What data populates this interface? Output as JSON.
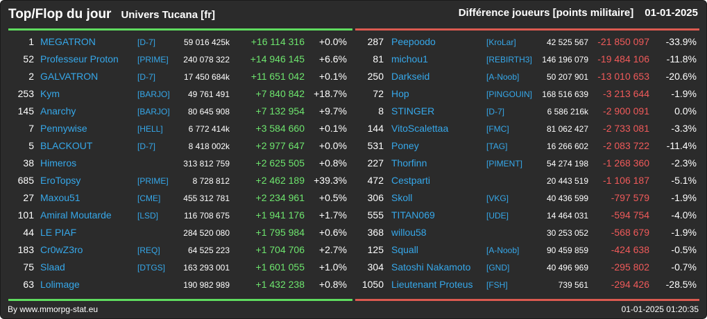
{
  "header": {
    "title": "Top/Flop du jour",
    "universe": "Univers Tucana [fr]",
    "metric": "Différence joueurs [points militaire]",
    "date": "01-01-2025"
  },
  "colors": {
    "background": "#2b2b2b",
    "top_accent": "#5fdc5f",
    "flop_accent": "#dc5a50",
    "link": "#36a8ea",
    "gain": "#6ee66e",
    "loss": "#f05a5a"
  },
  "top": [
    {
      "rank": "1",
      "name": "MEGATRON",
      "alliance": "[D-7]",
      "points": "59 016 425k",
      "diff": "+16 114 316",
      "pct": "+0.0%"
    },
    {
      "rank": "52",
      "name": "Professeur Proton",
      "alliance": "[PRIME]",
      "points": "240 078 322",
      "diff": "+14 946 145",
      "pct": "+6.6%"
    },
    {
      "rank": "2",
      "name": "GALVATRON",
      "alliance": "[D-7]",
      "points": "17 450 684k",
      "diff": "+11 651 042",
      "pct": "+0.1%"
    },
    {
      "rank": "253",
      "name": "Kym",
      "alliance": "[BARJO]",
      "points": "49 761 491",
      "diff": "+7 840 842",
      "pct": "+18.7%"
    },
    {
      "rank": "145",
      "name": "Anarchy",
      "alliance": "[BARJO]",
      "points": "80 645 908",
      "diff": "+7 132 954",
      "pct": "+9.7%"
    },
    {
      "rank": "7",
      "name": "Pennywise",
      "alliance": "[HELL]",
      "points": "6 772 414k",
      "diff": "+3 584 660",
      "pct": "+0.1%"
    },
    {
      "rank": "5",
      "name": "BLACKOUT",
      "alliance": "[D-7]",
      "points": "8 418 002k",
      "diff": "+2 977 647",
      "pct": "+0.0%"
    },
    {
      "rank": "38",
      "name": "Himeros",
      "alliance": "",
      "points": "313 812 759",
      "diff": "+2 625 505",
      "pct": "+0.8%"
    },
    {
      "rank": "685",
      "name": "EroTopsy",
      "alliance": "[PRIME]",
      "points": "8 728 812",
      "diff": "+2 462 189",
      "pct": "+39.3%"
    },
    {
      "rank": "27",
      "name": "Maxou51",
      "alliance": "[CME]",
      "points": "455 312 781",
      "diff": "+2 234 961",
      "pct": "+0.5%"
    },
    {
      "rank": "101",
      "name": "Amiral Moutarde",
      "alliance": "[LSD]",
      "points": "116 708 675",
      "diff": "+1 941 176",
      "pct": "+1.7%"
    },
    {
      "rank": "44",
      "name": "LE PIAF",
      "alliance": "",
      "points": "284 520 080",
      "diff": "+1 795 984",
      "pct": "+0.6%"
    },
    {
      "rank": "183",
      "name": "Cr0wZ3ro",
      "alliance": "[REQ]",
      "points": "64 525 223",
      "diff": "+1 704 706",
      "pct": "+2.7%"
    },
    {
      "rank": "75",
      "name": "Slaad",
      "alliance": "[DTGS]",
      "points": "163 293 001",
      "diff": "+1 601 055",
      "pct": "+1.0%"
    },
    {
      "rank": "63",
      "name": "Lolimage",
      "alliance": "",
      "points": "190 982 989",
      "diff": "+1 432 238",
      "pct": "+0.8%"
    }
  ],
  "flop": [
    {
      "rank": "287",
      "name": "Peepoodo",
      "alliance": "[KroLar]",
      "points": "42 525 567",
      "diff": "-21 850 097",
      "pct": "-33.9%"
    },
    {
      "rank": "81",
      "name": "michou1",
      "alliance": "[REBIRTH3]",
      "points": "146 196 079",
      "diff": "-19 484 106",
      "pct": "-11.8%"
    },
    {
      "rank": "250",
      "name": "Darkseid",
      "alliance": "[A-Noob]",
      "points": "50 207 901",
      "diff": "-13 010 653",
      "pct": "-20.6%"
    },
    {
      "rank": "72",
      "name": "Hop",
      "alliance": "[PINGOUIN]",
      "points": "168 516 639",
      "diff": "-3 213 644",
      "pct": "-1.9%"
    },
    {
      "rank": "8",
      "name": "STINGER",
      "alliance": "[D-7]",
      "points": "6 586 216k",
      "diff": "-2 900 091",
      "pct": "0.0%"
    },
    {
      "rank": "144",
      "name": "VitoScalettaa",
      "alliance": "[FMC]",
      "points": "81 062 427",
      "diff": "-2 733 081",
      "pct": "-3.3%"
    },
    {
      "rank": "531",
      "name": "Poney",
      "alliance": "[TAG]",
      "points": "16 266 602",
      "diff": "-2 083 722",
      "pct": "-11.4%"
    },
    {
      "rank": "227",
      "name": "Thorfinn",
      "alliance": "[PIMENT]",
      "points": "54 274 198",
      "diff": "-1 268 360",
      "pct": "-2.3%"
    },
    {
      "rank": "472",
      "name": "Cestparti",
      "alliance": "",
      "points": "20 443 519",
      "diff": "-1 106 187",
      "pct": "-5.1%"
    },
    {
      "rank": "306",
      "name": "Skoll",
      "alliance": "[VKG]",
      "points": "40 436 599",
      "diff": "-797 579",
      "pct": "-1.9%"
    },
    {
      "rank": "555",
      "name": "TITAN069",
      "alliance": "[UDE]",
      "points": "14 464 031",
      "diff": "-594 754",
      "pct": "-4.0%"
    },
    {
      "rank": "368",
      "name": "willou58",
      "alliance": "",
      "points": "30 253 052",
      "diff": "-568 679",
      "pct": "-1.9%"
    },
    {
      "rank": "125",
      "name": "Squall",
      "alliance": "[A-Noob]",
      "points": "90 459 859",
      "diff": "-424 638",
      "pct": "-0.5%"
    },
    {
      "rank": "304",
      "name": "Satoshi Nakamoto",
      "alliance": "[GND]",
      "points": "40 496 969",
      "diff": "-295 802",
      "pct": "-0.7%"
    },
    {
      "rank": "1050",
      "name": "Lieutenant Proteus",
      "alliance": "[FSH]",
      "points": "739 561",
      "diff": "-294 426",
      "pct": "-28.5%"
    }
  ],
  "footer": {
    "credit": "By www.mmorpg-stat.eu",
    "timestamp": "01-01-2025 01:20:35"
  }
}
